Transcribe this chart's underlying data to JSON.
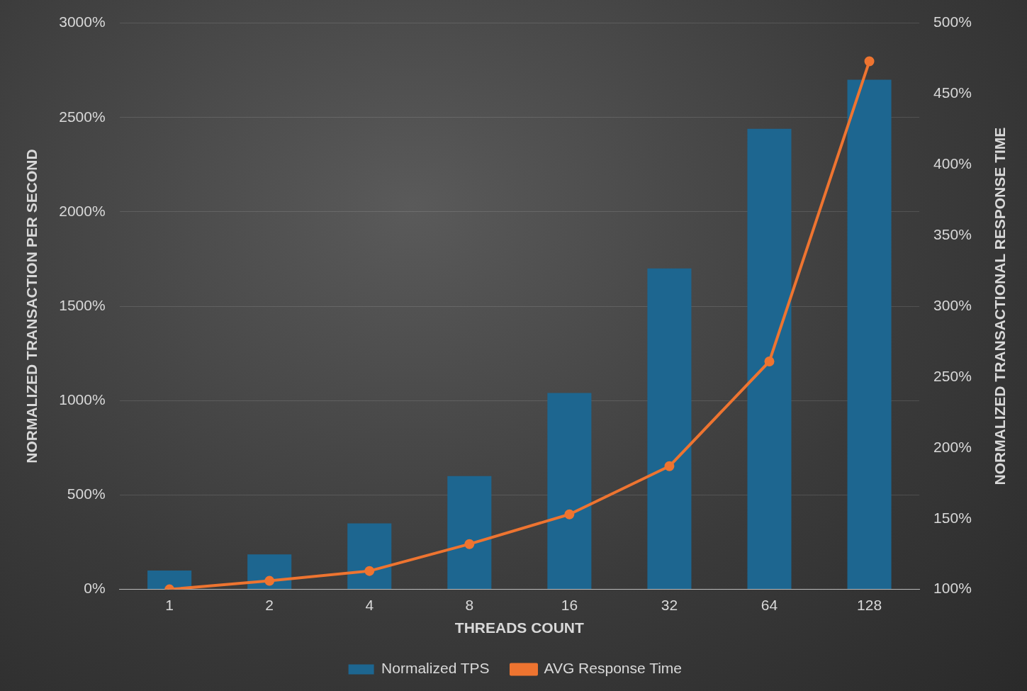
{
  "chart_data": {
    "type": "bar",
    "xlabel": "THREADS COUNT",
    "ylabel": "NORMALIZED TRANSACTION PER SECOND",
    "y2label": "NORMALIZED TRANSACTIONAL RESPONSE TIME",
    "categories": [
      "1",
      "2",
      "4",
      "8",
      "16",
      "32",
      "64",
      "128"
    ],
    "series": [
      {
        "name": "Normalized TPS",
        "color": "#1d6690",
        "values": [
          100,
          185,
          350,
          600,
          1040,
          1700,
          2440,
          2700
        ]
      },
      {
        "name": "AVG Response Time",
        "type": "line",
        "axis": "y2",
        "color": "#ee7430",
        "values": [
          100,
          106,
          113,
          132,
          153,
          187,
          261,
          473
        ]
      }
    ],
    "ylim": [
      0,
      3000
    ],
    "yticks": [
      {
        "value": 0,
        "label": "0%"
      },
      {
        "value": 500,
        "label": "500%"
      },
      {
        "value": 1000,
        "label": "1000%"
      },
      {
        "value": 1500,
        "label": "1500%"
      },
      {
        "value": 2000,
        "label": "2000%"
      },
      {
        "value": 2500,
        "label": "2500%"
      },
      {
        "value": 3000,
        "label": "3000%"
      }
    ],
    "y2lim": [
      100,
      500
    ],
    "y2ticks": [
      {
        "value": 100,
        "label": "100%"
      },
      {
        "value": 150,
        "label": "150%"
      },
      {
        "value": 200,
        "label": "200%"
      },
      {
        "value": 250,
        "label": "250%"
      },
      {
        "value": 300,
        "label": "300%"
      },
      {
        "value": 350,
        "label": "350%"
      },
      {
        "value": 400,
        "label": "400%"
      },
      {
        "value": 450,
        "label": "450%"
      },
      {
        "value": 500,
        "label": "500%"
      }
    ],
    "grid": "y",
    "legend": "bottom",
    "marker": "circle"
  }
}
